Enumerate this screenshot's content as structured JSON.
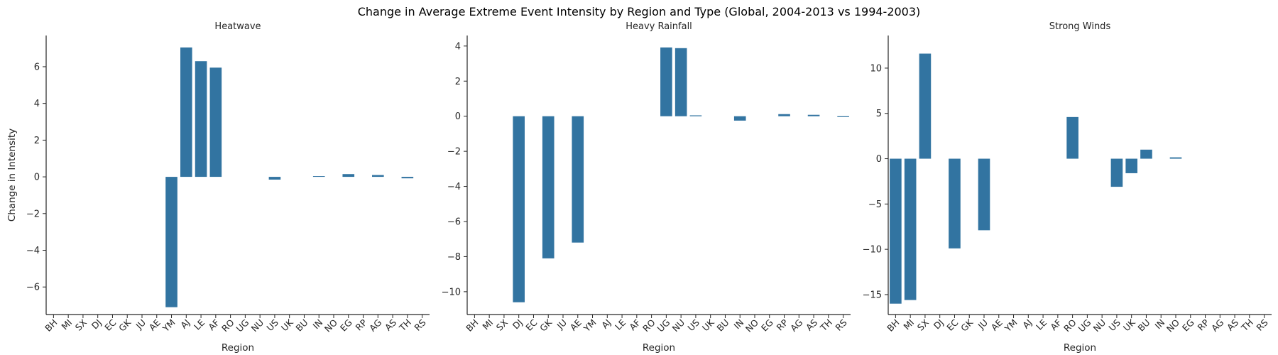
{
  "figure": {
    "title": "Change in Average Extreme Event Intensity by Region and Type (Global, 2004-2013 vs 1994-2003)"
  },
  "colors": {
    "bar": "#3274a1",
    "axis": "#262626"
  },
  "chart_data": [
    {
      "type": "bar",
      "title": "Heatwave",
      "xlabel": "Region",
      "ylabel": "Change in Intensity",
      "ylim": [
        -7.5,
        7.7
      ],
      "yticks": [
        -6,
        -4,
        -2,
        0,
        2,
        4,
        6
      ],
      "grid": false,
      "categories": [
        "BH",
        "MI",
        "SX",
        "DJ",
        "EC",
        "GK",
        "JU",
        "AE",
        "YM",
        "AJ",
        "LE",
        "AF",
        "RO",
        "UG",
        "NU",
        "US",
        "UK",
        "BU",
        "IN",
        "NO",
        "EG",
        "RP",
        "AG",
        "AS",
        "TH",
        "RS"
      ],
      "values": [
        null,
        null,
        null,
        null,
        null,
        null,
        null,
        null,
        -7.1,
        7.05,
        6.3,
        5.95,
        null,
        null,
        null,
        -0.15,
        null,
        null,
        0.04,
        null,
        0.15,
        null,
        0.1,
        null,
        -0.08,
        null
      ]
    },
    {
      "type": "bar",
      "title": "Heavy Rainfall",
      "xlabel": "Region",
      "ylabel": "",
      "ylim": [
        -11.3,
        4.6
      ],
      "yticks": [
        -10,
        -8,
        -6,
        -4,
        -2,
        0,
        2,
        4
      ],
      "grid": false,
      "categories": [
        "BH",
        "MI",
        "SX",
        "DJ",
        "EC",
        "GK",
        "JU",
        "AE",
        "YM",
        "AJ",
        "LE",
        "AF",
        "RO",
        "UG",
        "NU",
        "US",
        "UK",
        "BU",
        "IN",
        "NO",
        "EG",
        "RP",
        "AG",
        "AS",
        "TH",
        "RS"
      ],
      "values": [
        null,
        null,
        null,
        -10.6,
        null,
        -8.1,
        null,
        -7.2,
        null,
        null,
        null,
        null,
        null,
        3.92,
        3.88,
        0.05,
        null,
        null,
        -0.25,
        null,
        null,
        0.12,
        null,
        0.08,
        null,
        -0.05
      ]
    },
    {
      "type": "bar",
      "title": "Strong Winds",
      "xlabel": "Region",
      "ylabel": "",
      "ylim": [
        -17.2,
        13.6
      ],
      "yticks": [
        -15,
        -10,
        -5,
        0,
        5,
        10
      ],
      "grid": false,
      "categories": [
        "BH",
        "MI",
        "SX",
        "DJ",
        "EC",
        "GK",
        "JU",
        "AE",
        "YM",
        "AJ",
        "LE",
        "AF",
        "RO",
        "UG",
        "NU",
        "US",
        "UK",
        "BU",
        "IN",
        "NO",
        "EG",
        "RP",
        "AG",
        "AS",
        "TH",
        "RS"
      ],
      "values": [
        -16.0,
        -15.6,
        11.6,
        null,
        -9.9,
        null,
        -7.9,
        null,
        null,
        null,
        null,
        null,
        4.6,
        null,
        null,
        -3.1,
        -1.6,
        1.0,
        null,
        0.15,
        null,
        null,
        null,
        null,
        null,
        null
      ]
    }
  ]
}
